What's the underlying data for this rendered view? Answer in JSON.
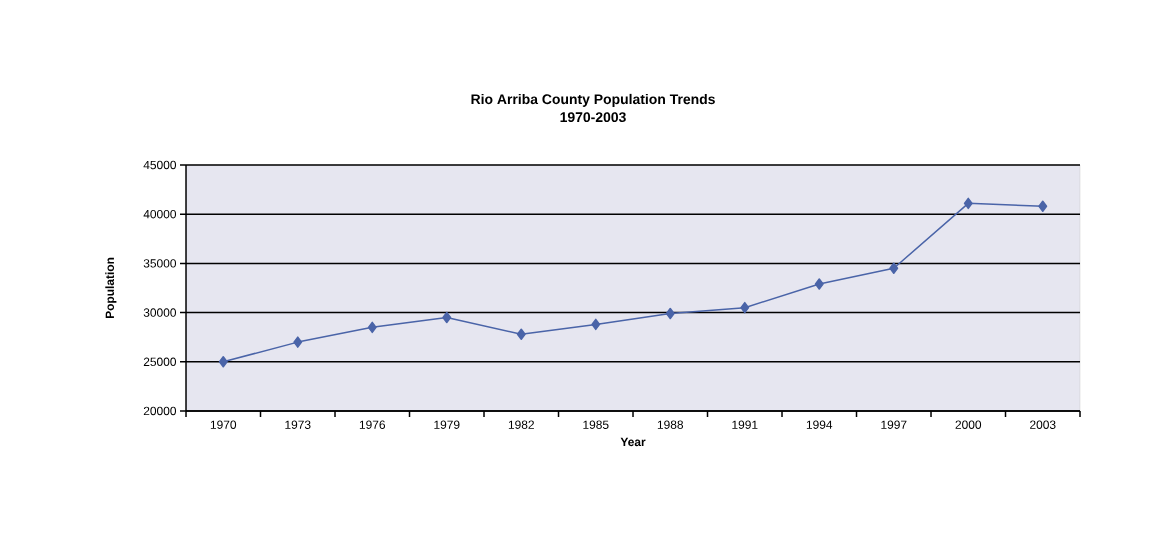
{
  "chart_data": {
    "type": "line",
    "title": "Rio Arriba County Population Trends\n1970-2003",
    "xlabel": "Year",
    "ylabel": "Population",
    "categories": [
      "1970",
      "1973",
      "1976",
      "1979",
      "1982",
      "1985",
      "1988",
      "1991",
      "1994",
      "1997",
      "2000",
      "2003"
    ],
    "series": [
      {
        "color": "#4a64a8",
        "values": [
          25000,
          27000,
          28500,
          29500,
          27800,
          28800,
          29900,
          30500,
          32900,
          34500,
          41100,
          40800
        ]
      }
    ],
    "ylim": [
      20000,
      45000
    ],
    "yticks": [
      20000,
      25000,
      30000,
      35000,
      40000,
      45000
    ],
    "grid": "y",
    "marker": "diamond",
    "line_style": "solid"
  }
}
